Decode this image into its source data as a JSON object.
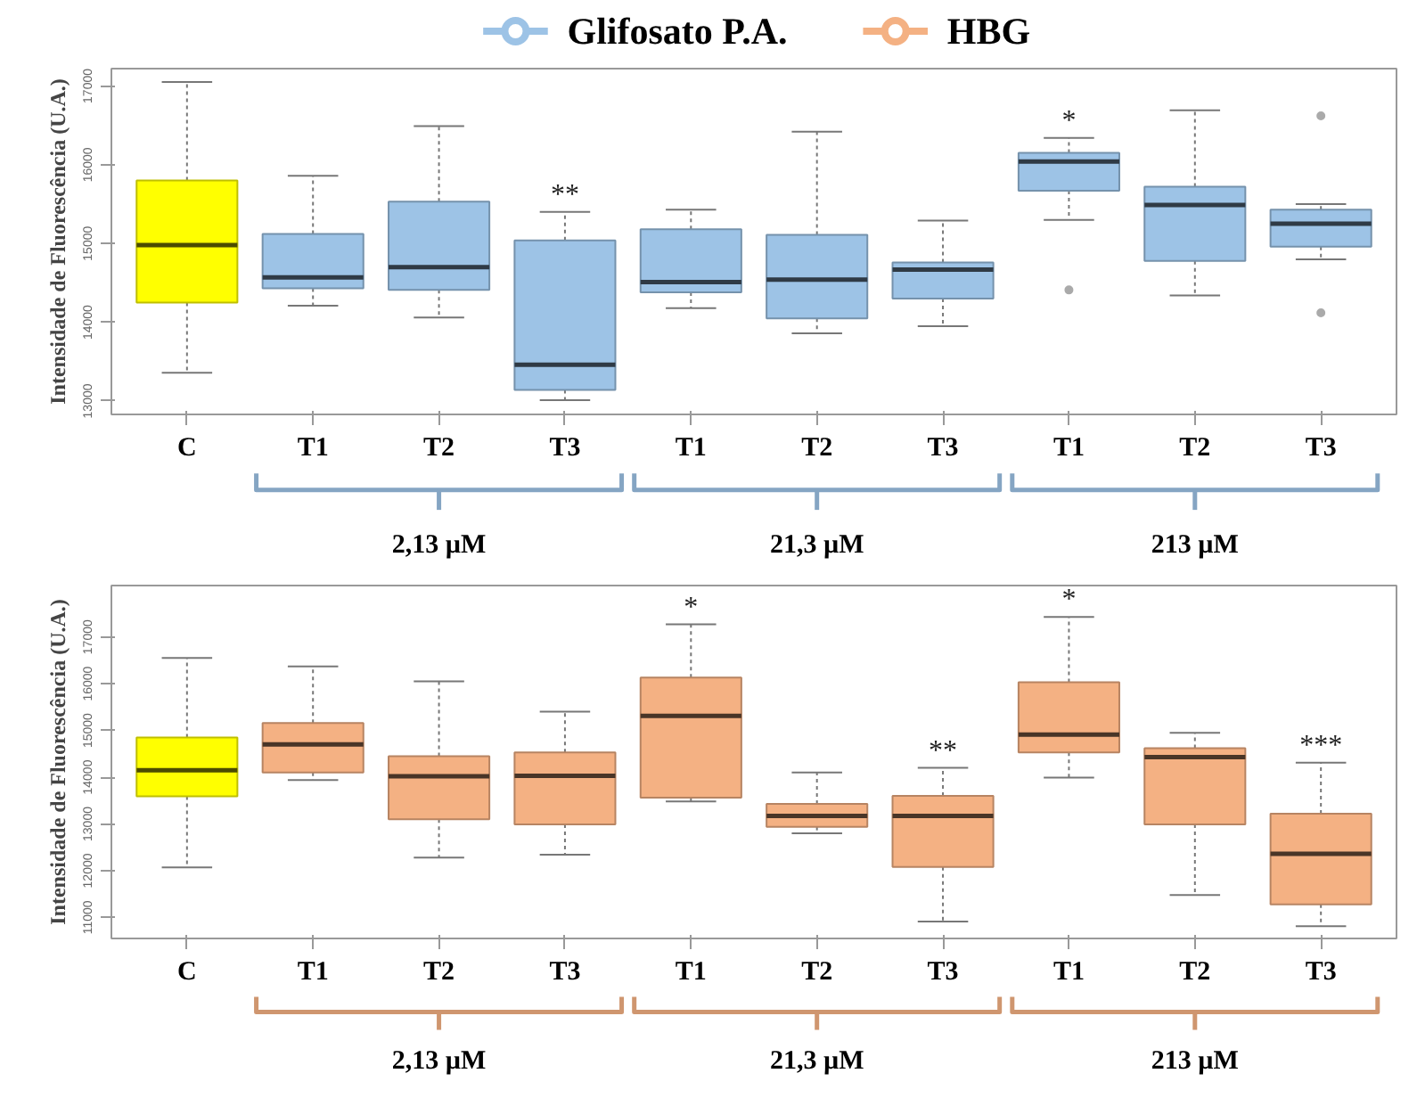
{
  "chart_data": [
    {
      "type": "box",
      "ylabel": "Intensidade de Fluorescência (U.A.)",
      "ylim": [
        12830,
        17220
      ],
      "yticks": [
        13000,
        14000,
        15000,
        16000,
        17000
      ],
      "categories": [
        "C",
        "T1",
        "T2",
        "T3",
        "T1",
        "T2",
        "T3",
        "T1",
        "T2",
        "T3"
      ],
      "legend": "top",
      "series": [
        {
          "color": "#ffff00",
          "boxes": [
            {
              "low": 13360,
              "q1": 14250,
              "median": 14980,
              "q3": 15800,
              "high": 17050
            },
            null,
            null,
            null,
            null,
            null,
            null,
            null,
            null,
            null
          ]
        },
        {
          "name": "Glifosato P.A.",
          "color": "#9dc3e6",
          "boxes": [
            null,
            {
              "low": 14210,
              "q1": 14430,
              "median": 14570,
              "q3": 15120,
              "high": 15860
            },
            {
              "low": 14060,
              "q1": 14410,
              "median": 14700,
              "q3": 15530,
              "high": 16490
            },
            {
              "low": 13010,
              "q1": 13140,
              "median": 13460,
              "q3": 15040,
              "high": 15400
            },
            {
              "low": 14180,
              "q1": 14380,
              "median": 14510,
              "q3": 15180,
              "high": 15430
            },
            {
              "low": 13860,
              "q1": 14050,
              "median": 14540,
              "q3": 15110,
              "high": 16420
            },
            {
              "low": 13950,
              "q1": 14300,
              "median": 14670,
              "q3": 14760,
              "high": 15290
            },
            {
              "low": 15300,
              "q1": 15670,
              "median": 16040,
              "q3": 16150,
              "high": 16340,
              "outliers": [
                14410
              ]
            },
            {
              "low": 14340,
              "q1": 14780,
              "median": 15490,
              "q3": 15720,
              "high": 16690
            },
            {
              "low": 14800,
              "q1": 14960,
              "median": 15250,
              "q3": 15430,
              "high": 15500,
              "outliers": [
                16620,
                14120
              ]
            }
          ]
        }
      ],
      "annotations": [
        {
          "text": "**",
          "y": 15400
        },
        {
          "text": "*",
          "y": 16340
        },
        "2,13 µM",
        "21,3 µM",
        "213 µM"
      ]
    },
    {
      "type": "box",
      "ylabel": "Intensidade de Fluorescência (U.A.)",
      "ylim": [
        10550,
        18100
      ],
      "yticks": [
        11000,
        12000,
        13000,
        14000,
        15000,
        16000,
        17000
      ],
      "categories": [
        "C",
        "T1",
        "T2",
        "T3",
        "T1",
        "T2",
        "T3",
        "T1",
        "T2",
        "T3"
      ],
      "legend": "top",
      "series": [
        {
          "color": "#ffff00",
          "boxes": [
            {
              "low": 12070,
              "q1": 13590,
              "median": 14150,
              "q3": 14850,
              "high": 16550
            },
            null,
            null,
            null,
            null,
            null,
            null,
            null,
            null,
            null
          ]
        },
        {
          "name": "HBG",
          "color": "#f4b183",
          "boxes": [
            null,
            {
              "low": 13940,
              "q1": 14100,
              "median": 14700,
              "q3": 15160,
              "high": 16370
            },
            {
              "low": 12280,
              "q1": 13100,
              "median": 14020,
              "q3": 14450,
              "high": 16050
            },
            {
              "low": 12340,
              "q1": 12990,
              "median": 14030,
              "q3": 14530,
              "high": 15400
            },
            {
              "low": 13480,
              "q1": 13560,
              "median": 15310,
              "q3": 16130,
              "high": 17270
            },
            {
              "low": 12800,
              "q1": 12940,
              "median": 13170,
              "q3": 13430,
              "high": 14100
            },
            {
              "low": 10910,
              "q1": 12080,
              "median": 13170,
              "q3": 13600,
              "high": 14200
            },
            {
              "low": 13990,
              "q1": 14530,
              "median": 14910,
              "q3": 16030,
              "high": 17430
            },
            {
              "low": 11480,
              "q1": 12990,
              "median": 14430,
              "q3": 14620,
              "high": 14950
            },
            {
              "low": 10810,
              "q1": 11280,
              "median": 12360,
              "q3": 13220,
              "high": 14310
            }
          ]
        }
      ],
      "annotations": [
        {
          "text": "*",
          "y": 17270
        },
        {
          "text": "**",
          "y": 14200
        },
        {
          "text": "*",
          "y": 17430
        },
        {
          "text": "***",
          "y": 14310
        },
        "2,13 µM",
        "21,3 µM",
        "213 µM"
      ]
    }
  ]
}
